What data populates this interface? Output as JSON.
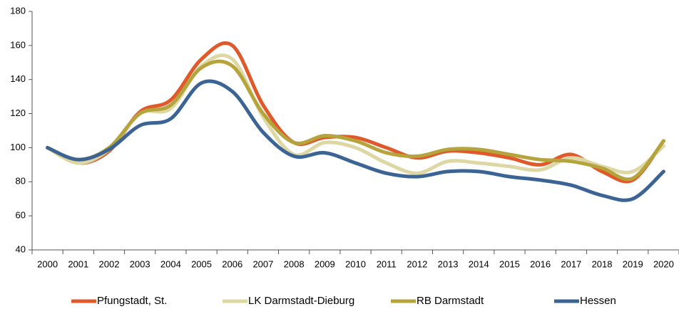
{
  "chart_data": {
    "type": "line",
    "categories": [
      "2000",
      "2001",
      "2002",
      "2003",
      "2004",
      "2005",
      "2006",
      "2007",
      "2008",
      "2009",
      "2010",
      "2011",
      "2012",
      "2013",
      "2014",
      "2015",
      "2016",
      "2017",
      "2018",
      "2019",
      "2020"
    ],
    "series": [
      {
        "name": "Pfungstadt, St.",
        "color": "#e0592a",
        "values": [
          100,
          91,
          98,
          121,
          128,
          152,
          160,
          125,
          103,
          106,
          106,
          100,
          94,
          98,
          97,
          94,
          90,
          96,
          86,
          81,
          104
        ]
      },
      {
        "name": "LK Darmstadt-Dieburg",
        "color": "#ddd7a3",
        "values": [
          100,
          91,
          99,
          120,
          123,
          148,
          152,
          118,
          96,
          103,
          100,
          91,
          85,
          92,
          91,
          89,
          87,
          94,
          89,
          86,
          101
        ]
      },
      {
        "name": "RB Darmstadt",
        "color": "#b5a33c",
        "values": [
          100,
          93,
          100,
          120,
          125,
          147,
          148,
          120,
          103,
          107,
          104,
          97,
          95,
          99,
          99,
          96,
          93,
          92,
          88,
          82,
          104
        ]
      },
      {
        "name": "Hessen",
        "color": "#3b6494",
        "values": [
          100,
          93,
          99,
          113,
          117,
          138,
          133,
          109,
          95,
          97,
          91,
          85,
          83,
          86,
          86,
          83,
          81,
          78,
          72,
          70,
          86
        ]
      }
    ],
    "ylim": [
      40,
      180
    ],
    "yticks": [
      40,
      60,
      80,
      100,
      120,
      140,
      160,
      180
    ],
    "grid": false,
    "legend": "bottom"
  }
}
